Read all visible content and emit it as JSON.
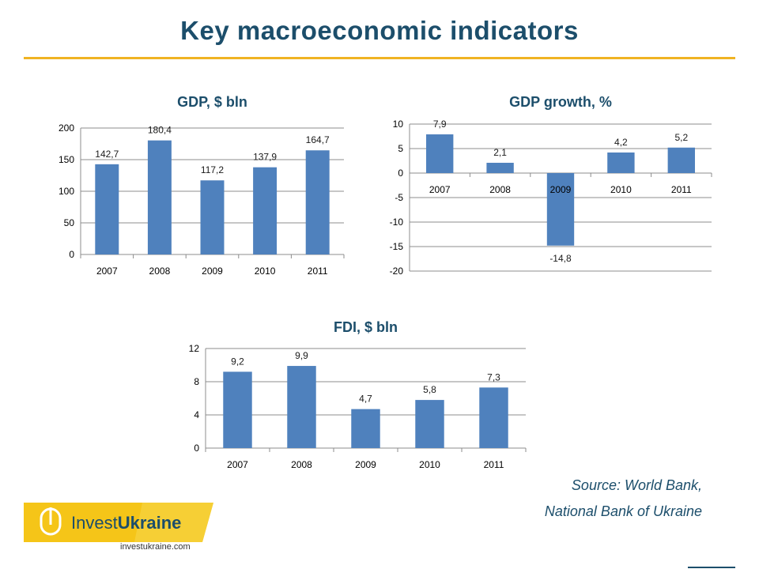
{
  "page": {
    "title": "Key macroeconomic indicators",
    "source_line1": "Source: World Bank,",
    "source_line2": "National Bank of Ukraine"
  },
  "logo": {
    "text_regular": "Invest",
    "text_bold": "Ukraine",
    "url": "investukraine.com"
  },
  "colors": {
    "accent": "#f0b323",
    "title": "#1c4e6b",
    "bar": "#4f81bd"
  },
  "chart_data": [
    {
      "id": "gdp",
      "type": "bar",
      "title": "GDP, $ bln",
      "categories": [
        "2007",
        "2008",
        "2009",
        "2010",
        "2011"
      ],
      "values": [
        142.7,
        180.4,
        117.2,
        137.9,
        164.7
      ],
      "labels": [
        "142,7",
        "180,4",
        "117,2",
        "137,9",
        "164,7"
      ],
      "ylim": [
        0,
        200
      ],
      "yticks": [
        0,
        50,
        100,
        150,
        200
      ],
      "grid": true
    },
    {
      "id": "growth",
      "type": "bar",
      "title": "GDP growth, %",
      "categories": [
        "2007",
        "2008",
        "2009",
        "2010",
        "2011"
      ],
      "values": [
        7.9,
        2.1,
        -14.8,
        4.2,
        5.2
      ],
      "labels": [
        "7,9",
        "2,1",
        "-14,8",
        "4,2",
        "5,2"
      ],
      "ylim": [
        -20,
        10
      ],
      "yticks": [
        -20,
        -15,
        -10,
        -5,
        0,
        5,
        10
      ],
      "grid": true
    },
    {
      "id": "fdi",
      "type": "bar",
      "title": "FDI, $ bln",
      "categories": [
        "2007",
        "2008",
        "2009",
        "2010",
        "2011"
      ],
      "values": [
        9.2,
        9.9,
        4.7,
        5.8,
        7.3
      ],
      "labels": [
        "9,2",
        "9,9",
        "4,7",
        "5,8",
        "7,3"
      ],
      "ylim": [
        0,
        12
      ],
      "yticks": [
        0,
        4,
        8,
        12
      ],
      "grid": true
    }
  ]
}
